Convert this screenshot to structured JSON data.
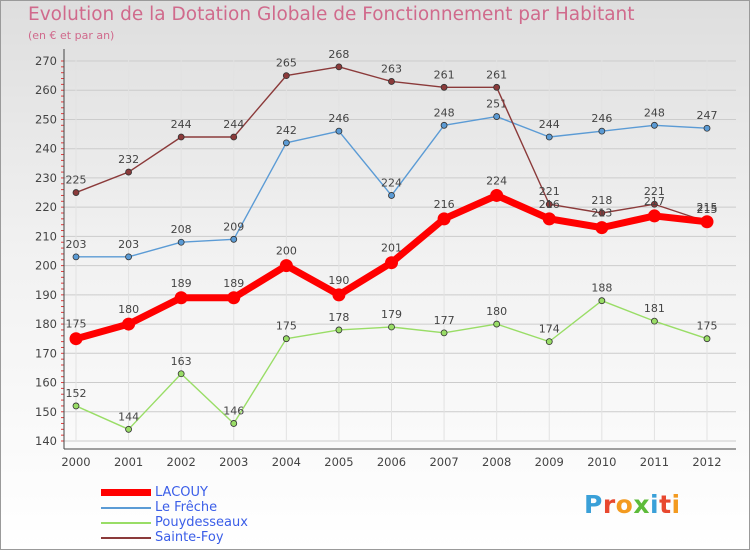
{
  "header": {
    "title": "Evolution de la Dotation Globale de Fonctionnement par Habitant",
    "subtitle": "(en € et par an)"
  },
  "logo": {
    "text": "Proxiti",
    "letter_colors": [
      "#3aa0d8",
      "#e8482f",
      "#f39a1f",
      "#5dbb3a",
      "#3aa0d8",
      "#e8482f",
      "#f39a1f"
    ]
  },
  "chart_data": {
    "type": "line",
    "title": "Evolution de la Dotation Globale de Fonctionnement par Habitant",
    "subtitle": "(en € et par an)",
    "xlabel": "",
    "ylabel": "",
    "ylim": [
      140,
      270
    ],
    "yticks": [
      140,
      150,
      160,
      170,
      180,
      190,
      200,
      210,
      220,
      230,
      240,
      250,
      260,
      270
    ],
    "grid": true,
    "legend_position": "bottom-left",
    "categories": [
      "2000",
      "2001",
      "2002",
      "2003",
      "2004",
      "2005",
      "2006",
      "2007",
      "2008",
      "2009",
      "2010",
      "2011",
      "2012"
    ],
    "series": [
      {
        "name": "LACOUY",
        "color": "#ff0000",
        "emphasis": true,
        "values": [
          175,
          180,
          189,
          189,
          200,
          190,
          201,
          216,
          224,
          216,
          213,
          217,
          215
        ]
      },
      {
        "name": "Le Frêche",
        "color": "#5b9bd5",
        "emphasis": false,
        "values": [
          203,
          203,
          208,
          209,
          242,
          246,
          224,
          248,
          251,
          244,
          246,
          248,
          247
        ]
      },
      {
        "name": "Pouydesseaux",
        "color": "#99dd66",
        "emphasis": false,
        "values": [
          152,
          144,
          163,
          146,
          175,
          178,
          179,
          177,
          180,
          174,
          188,
          181,
          175
        ]
      },
      {
        "name": "Sainte-Foy",
        "color": "#8b3a3a",
        "emphasis": false,
        "values": [
          225,
          232,
          244,
          244,
          265,
          268,
          263,
          261,
          261,
          221,
          218,
          221,
          215
        ]
      }
    ]
  }
}
